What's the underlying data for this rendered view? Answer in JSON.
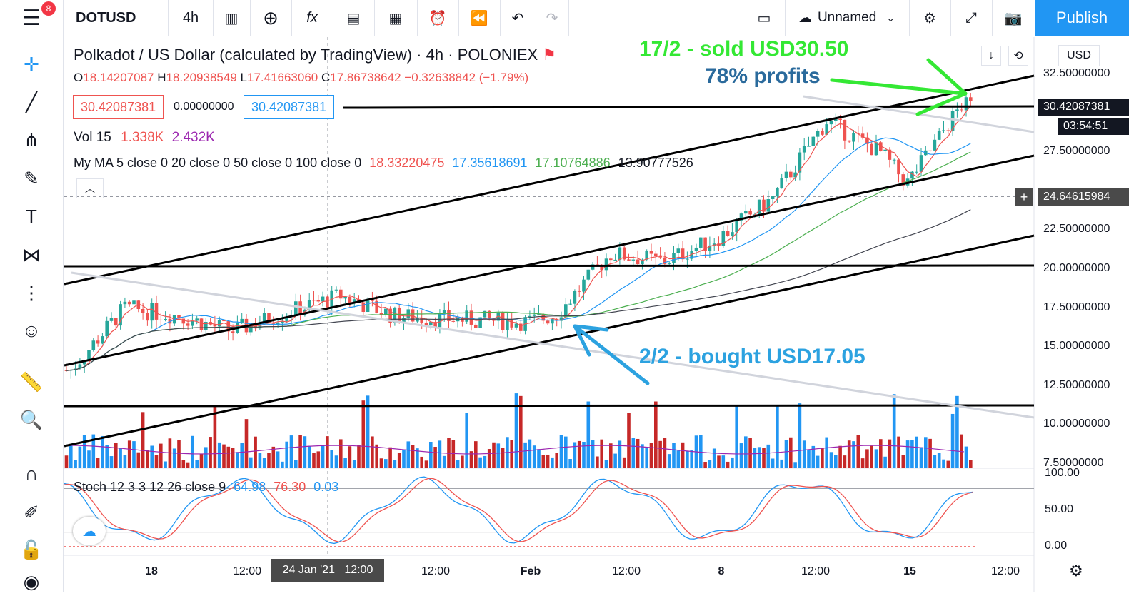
{
  "header": {
    "symbol": "DOTUSD",
    "interval": "4h",
    "layout_name": "Unnamed",
    "publish": "Publish",
    "notifications": "8"
  },
  "legend": {
    "title": "Polkadot / US Dollar (calculated by TradingView)",
    "interval": "4h",
    "exchange": "POLONIEX",
    "ohlc": {
      "o": "18.14207087",
      "h": "18.20938549",
      "l": "17.41663060",
      "c": "17.86738642",
      "change": "−0.32638842 (−1.79%)"
    },
    "sell_price": "30.42087381",
    "spread": "0.00000000",
    "buy_price": "30.42087381",
    "vol": {
      "label": "Vol 15",
      "v1": "1.338K",
      "v2": "2.432K"
    },
    "ma": {
      "label": "My MA 5 close 0 20 close 0 50 close 0 100 close 0",
      "v5": "18.33220475",
      "v20": "17.35618691",
      "v50": "17.10764886",
      "v100": "13.90777526"
    }
  },
  "annotations": {
    "sold": "17/2 - sold USD30.50",
    "profit": "78% profits",
    "bought": "2/2 - bought USD17.05"
  },
  "price_axis": {
    "currency": "USD",
    "labels": [
      "32.50000000",
      "27.50000000",
      "22.50000000",
      "20.00000000",
      "17.50000000",
      "15.00000000",
      "12.50000000",
      "10.00000000",
      "7.50000000"
    ],
    "current_price": "30.42087381",
    "countdown": "03:54:51",
    "crosshair_price": "24.64615984"
  },
  "stoch": {
    "label": "Stoch 12 3 3 12 26 close 9",
    "k": "64.98",
    "d": "76.30",
    "hist": "0.03",
    "axis": [
      "100.00",
      "50.00",
      "0.00"
    ]
  },
  "time_axis": {
    "labels": [
      "18",
      "12:00",
      "12:00",
      "Feb",
      "12:00",
      "8",
      "12:00",
      "15",
      "12:00"
    ],
    "crosshair_time": "24 Jan '21   12:00"
  },
  "colors": {
    "up": "#26a69a",
    "down": "#ef5350",
    "accent": "#2196f3",
    "annot_green": "#34e834",
    "annot_blue": "#2ca2e0"
  },
  "chart_data": {
    "type": "candlestick",
    "title": "Polkadot / US Dollar (calculated by TradingView)",
    "x_range": [
      "Jan 15 2021",
      "Feb 20 2021"
    ],
    "y_range": [
      7.5,
      32.5
    ],
    "approx_closes": [
      {
        "date": "Jan 15",
        "close": 13.5
      },
      {
        "date": "Jan 17",
        "close": 17.5
      },
      {
        "date": "Jan 19",
        "close": 17.0
      },
      {
        "date": "Jan 21",
        "close": 16.0
      },
      {
        "date": "Jan 23",
        "close": 17.2
      },
      {
        "date": "Jan 25",
        "close": 18.3
      },
      {
        "date": "Jan 27",
        "close": 17.0
      },
      {
        "date": "Jan 29",
        "close": 16.8
      },
      {
        "date": "Feb 1",
        "close": 16.6
      },
      {
        "date": "Feb 2",
        "close": 17.05
      },
      {
        "date": "Feb 4",
        "close": 21.0
      },
      {
        "date": "Feb 6",
        "close": 20.5
      },
      {
        "date": "Feb 8",
        "close": 22.0
      },
      {
        "date": "Feb 10",
        "close": 24.5
      },
      {
        "date": "Feb 12",
        "close": 29.5
      },
      {
        "date": "Feb 14",
        "close": 27.5
      },
      {
        "date": "Feb 15",
        "close": 25.5
      },
      {
        "date": "Feb 17",
        "close": 30.5
      },
      {
        "date": "Feb 18",
        "close": 30.42
      }
    ]
  }
}
